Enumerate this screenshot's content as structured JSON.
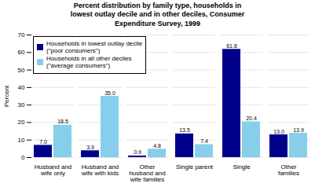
{
  "chart_data": {
    "type": "bar",
    "title": "Percent distribution by family type, households in\nlowest outlay decile and in other deciles, Consumer\nExpenditure Survey, 1999",
    "categories": [
      "Husband and\nwife only",
      "Husband and\nwife with kids",
      "Other\nhusband and\nwife families",
      "Single parent",
      "Single",
      "Other\nfamilies"
    ],
    "series": [
      {
        "name": "Households in lowest outlay decile\n(\"poor consumers\")",
        "color": "#00008B",
        "values": [
          7.0,
          3.9,
          0.9,
          13.5,
          61.8,
          13.0
        ],
        "value_labels": [
          "7.0",
          "3.9",
          "0.9",
          "13.5",
          "61.8",
          "13.0"
        ]
      },
      {
        "name": "Households in all other deciles\n(\"average consumers\")",
        "color": "#87CEEB",
        "values": [
          18.5,
          35.0,
          4.8,
          7.4,
          20.4,
          13.9
        ],
        "value_labels": [
          "18.5",
          "35.0",
          "4.8",
          "7.4",
          "20.4",
          "13.9"
        ]
      }
    ],
    "ylabel": "Percent",
    "ylim": [
      0,
      70
    ],
    "yticks": [
      0,
      10,
      20,
      30,
      40,
      50,
      60,
      70
    ],
    "grid": true,
    "legend": "upper left",
    "data_labels": true
  }
}
